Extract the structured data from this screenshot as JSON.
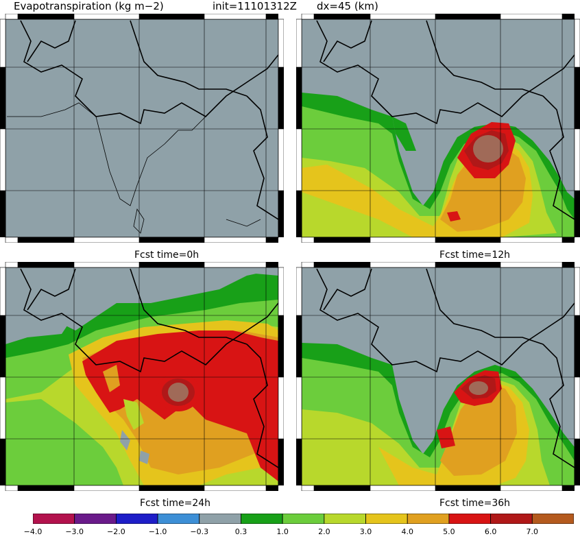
{
  "header": {
    "variable": "Evapotranspiration (kg m−2)",
    "init": "init=11101312Z",
    "dx": "dx=45 (km)"
  },
  "panels": [
    {
      "caption": "Fcst time=0h"
    },
    {
      "caption": "Fcst time=12h"
    },
    {
      "caption": "Fcst time=24h"
    },
    {
      "caption": "Fcst time=36h"
    }
  ],
  "colorbar": {
    "ticks": [
      "−4.0",
      "−3.0",
      "−2.0",
      "−1.0",
      "−0.3",
      "0.3",
      "1.0",
      "2.0",
      "3.0",
      "4.0",
      "5.0",
      "6.0",
      "7.0"
    ],
    "colors": [
      "#b3124d",
      "#6a1a8a",
      "#1e1ec8",
      "#3d8fd6",
      "#8fa1a8",
      "#18a018",
      "#6ccd3c",
      "#b8d82c",
      "#e5c41c",
      "#e0a020",
      "#d81414",
      "#b01818",
      "#b45a1e"
    ]
  },
  "colors": {
    "land": "#8fa1a8",
    "ocean_low": "#6ccd3c",
    "contour_1": "#18a018",
    "contour_3": "#e5c41c",
    "contour_4": "#e0a020",
    "contour_5": "#d81414",
    "contour_7": "#a06a58"
  }
}
